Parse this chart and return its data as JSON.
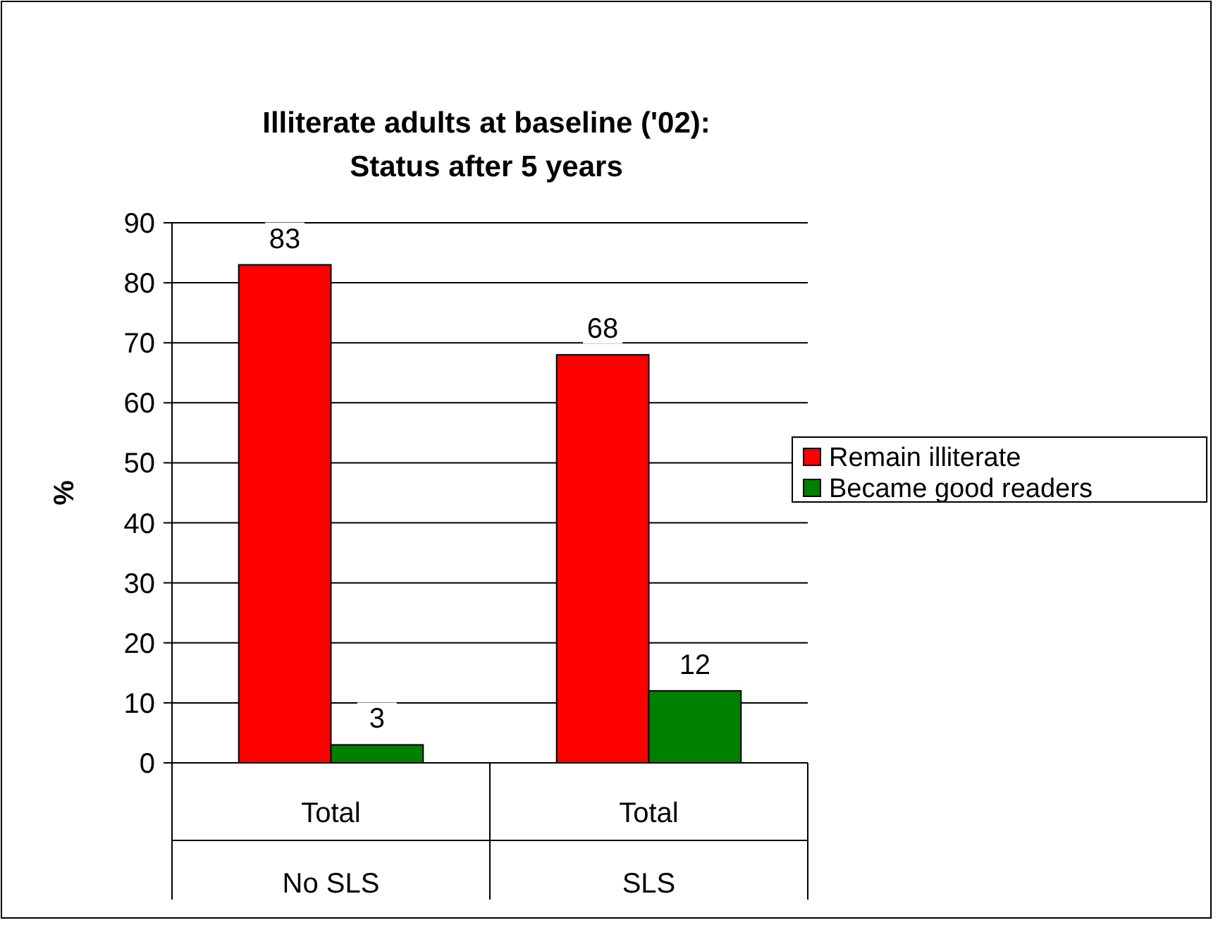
{
  "chart_data": {
    "type": "bar",
    "title": "Illiterate adults at baseline ('02):\nStatus after 5 years",
    "ylabel": "%",
    "categories": [
      "Total\nNo SLS",
      "Total\nSLS"
    ],
    "series": [
      {
        "name": "Remain illiterate",
        "color": "#ff0000",
        "values": [
          83,
          68
        ]
      },
      {
        "name": "Became good readers",
        "color": "#008000",
        "values": [
          3,
          12
        ]
      }
    ],
    "ylim": [
      0,
      90
    ],
    "yticks": [
      0,
      10,
      20,
      30,
      40,
      50,
      60,
      70,
      80,
      90
    ],
    "grid": "y",
    "legend": "right",
    "data_labels": true
  }
}
